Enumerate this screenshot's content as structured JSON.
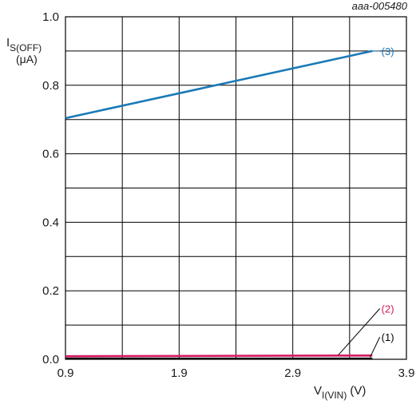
{
  "chart_data": {
    "type": "line",
    "figure_id": "aaa-005480",
    "ylabel": {
      "main": "I",
      "sub": "S(OFF)",
      "unit": "(μA)"
    },
    "xlabel": {
      "main": "V",
      "sub": "I(VIN)",
      "unit": "(V)"
    },
    "xlim": [
      0.9,
      3.9
    ],
    "ylim": [
      0.0,
      1.0
    ],
    "x_ticks": [
      0.9,
      1.9,
      2.9,
      3.9
    ],
    "x_tick_labels": [
      "0.9",
      "1.9",
      "2.9",
      "3.9"
    ],
    "y_ticks": [
      0.0,
      0.2,
      0.4,
      0.6,
      0.8,
      1.0
    ],
    "y_tick_labels": [
      "0.0",
      "0.2",
      "0.4",
      "0.6",
      "0.8",
      "1.0"
    ],
    "x_gridlines": [
      0.9,
      1.4,
      1.9,
      2.4,
      2.9,
      3.4,
      3.9
    ],
    "y_gridlines": [
      0.0,
      0.1,
      0.2,
      0.3,
      0.4,
      0.5,
      0.6,
      0.7,
      0.8,
      0.9,
      1.0
    ],
    "grid": true,
    "series": [
      {
        "name": "(1)",
        "color": "#000000",
        "x": [
          0.9,
          3.6
        ],
        "y": [
          0.002,
          0.002
        ],
        "label_at": [
          3.68,
          0.065
        ],
        "leader_to": [
          3.58,
          0.006
        ]
      },
      {
        "name": "(2)",
        "color": "#d6185e",
        "x": [
          0.9,
          3.6
        ],
        "y": [
          0.009,
          0.011
        ],
        "label_at": [
          3.68,
          0.148
        ],
        "leader_to": [
          3.3,
          0.012
        ]
      },
      {
        "name": "(3)",
        "color": "#1a7ab8",
        "x": [
          0.9,
          3.6
        ],
        "y": [
          0.704,
          0.9
        ],
        "label_at": [
          3.68,
          0.9
        ],
        "leader_to": [
          3.6,
          0.9
        ]
      }
    ]
  }
}
